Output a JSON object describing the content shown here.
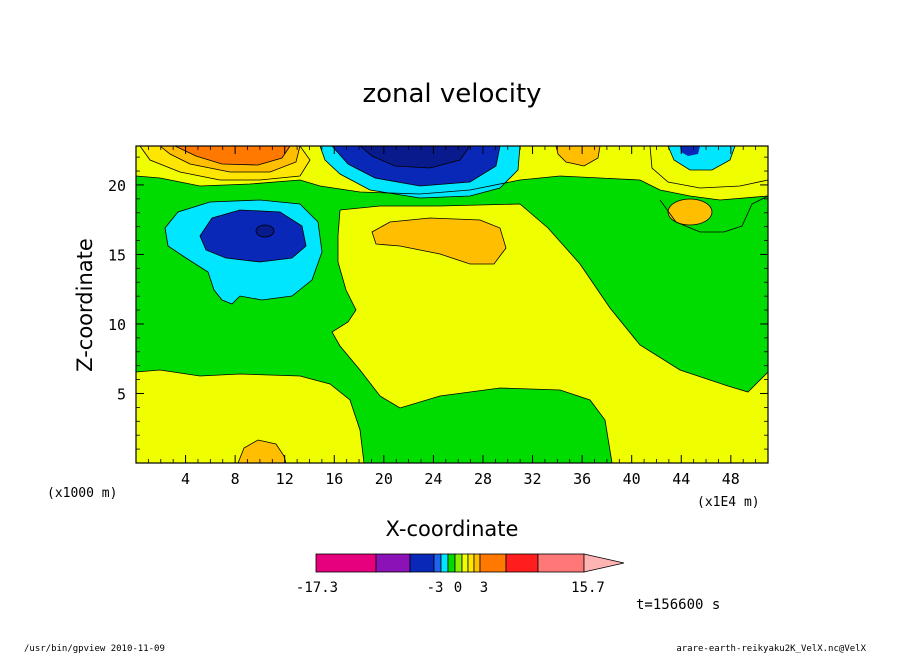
{
  "chart_data": {
    "type": "contour",
    "title": "zonal velocity",
    "xlabel": "X-coordinate",
    "ylabel": "Z-coordinate",
    "x_unit": "(x1E4 m)",
    "z_unit": "(x1000 m)",
    "xlim": [
      0,
      51
    ],
    "ylim": [
      0,
      22.8
    ],
    "x_ticks": [
      4,
      8,
      12,
      16,
      20,
      24,
      28,
      32,
      36,
      40,
      44,
      48
    ],
    "y_ticks": [
      5,
      10,
      15,
      20
    ],
    "colorbar": {
      "labels": [
        "-17.3",
        "-3",
        "0",
        "3",
        "15.7"
      ],
      "colors": [
        "#e6007e",
        "#8a12b6",
        "#0a28b8",
        "#1e64f0",
        "#00e6ff",
        "#00dc00",
        "#8cf000",
        "#f0ff00",
        "#ffe600",
        "#ffbe00",
        "#ff7800",
        "#ff1e1e",
        "#ff7878",
        "#ffb4b4"
      ]
    },
    "time_label": "t=156600 s"
  },
  "footer": {
    "left": "/usr/bin/gpview   2010-11-09",
    "right": "arare-earth-reikyaku2K_VelX.nc@VelX"
  }
}
